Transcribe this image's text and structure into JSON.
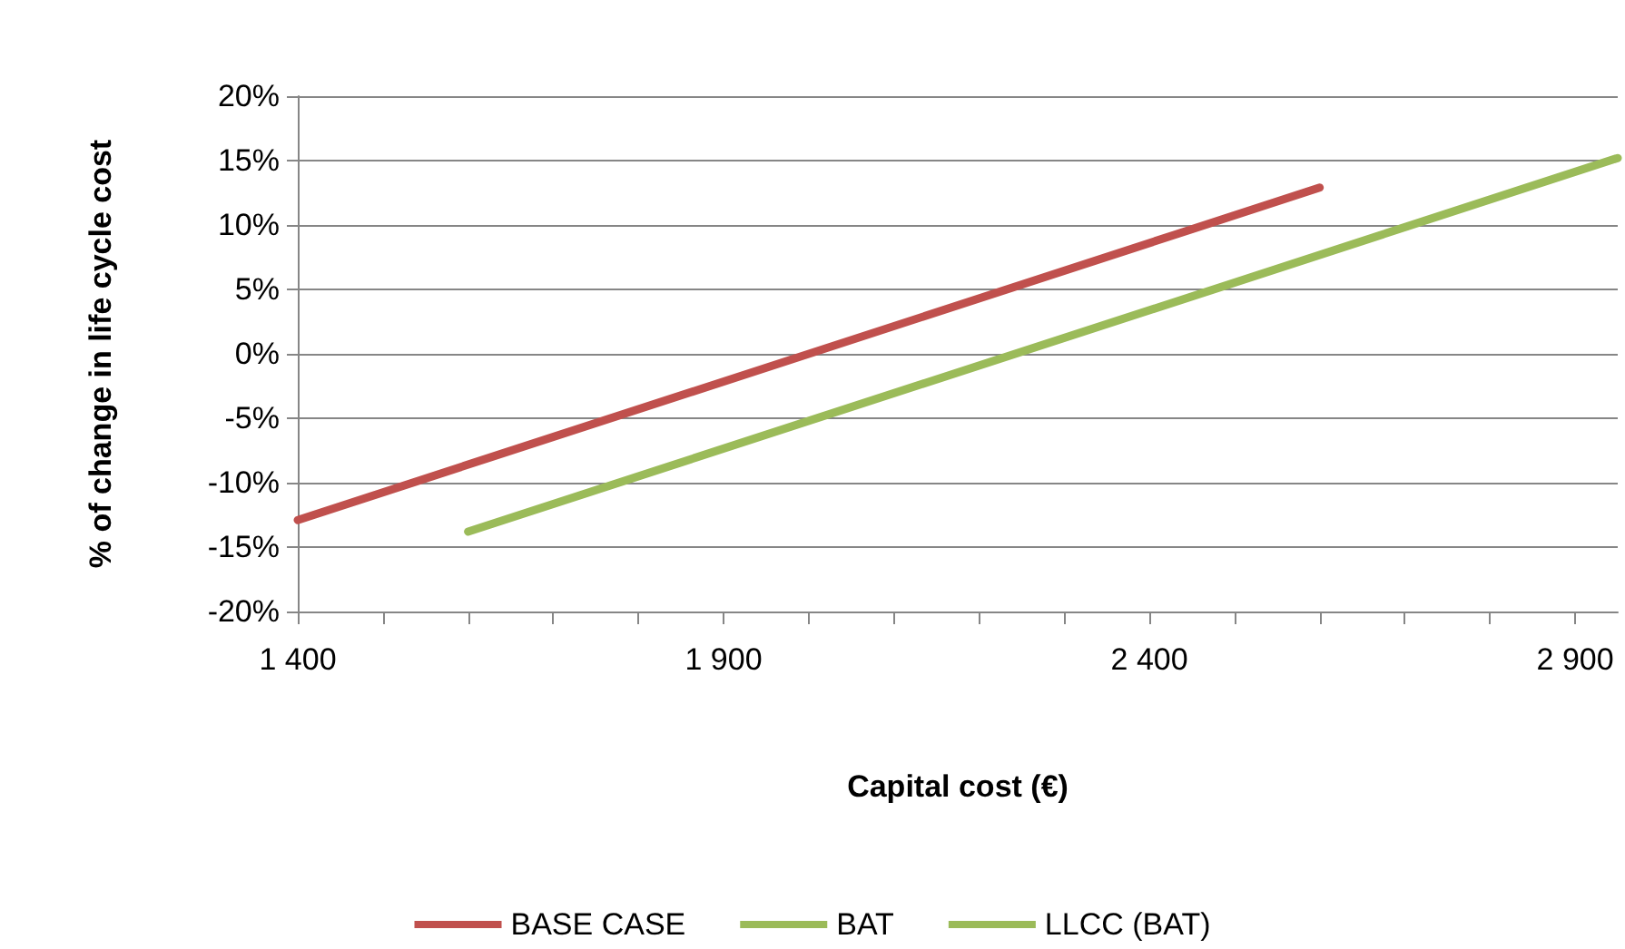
{
  "chart_data": {
    "type": "line",
    "xlabel": "Capital cost (€)",
    "ylabel": "% of change in life cycle cost",
    "series": [
      {
        "name": "BASE CASE",
        "color": "#c0504d",
        "x": [
          1400,
          2600
        ],
        "values": [
          -12.9,
          12.9
        ]
      },
      {
        "name": "BAT",
        "color": "#9bbb59",
        "x": [
          1600,
          2950
        ],
        "values": [
          -13.8,
          15.2
        ]
      },
      {
        "name": "LLCC (BAT)",
        "color": "#9bbb59"
      }
    ],
    "xlim": [
      1400,
      2950
    ],
    "xticks": [
      {
        "value": 1400,
        "label": "1 400"
      },
      {
        "value": 1500,
        "label": null
      },
      {
        "value": 1600,
        "label": null
      },
      {
        "value": 1700,
        "label": null
      },
      {
        "value": 1800,
        "label": null
      },
      {
        "value": 1900,
        "label": "1 900"
      },
      {
        "value": 2000,
        "label": null
      },
      {
        "value": 2100,
        "label": null
      },
      {
        "value": 2200,
        "label": null
      },
      {
        "value": 2300,
        "label": null
      },
      {
        "value": 2400,
        "label": "2 400"
      },
      {
        "value": 2500,
        "label": null
      },
      {
        "value": 2600,
        "label": null
      },
      {
        "value": 2700,
        "label": null
      },
      {
        "value": 2800,
        "label": null
      },
      {
        "value": 2900,
        "label": "2 900"
      }
    ],
    "ylim": [
      -20,
      20
    ],
    "yticks": [
      {
        "value": -20,
        "label": "-20%"
      },
      {
        "value": -15,
        "label": "-15%"
      },
      {
        "value": -10,
        "label": "-10%"
      },
      {
        "value": -5,
        "label": "-5%"
      },
      {
        "value": 0,
        "label": "0%"
      },
      {
        "value": 5,
        "label": "5%"
      },
      {
        "value": 10,
        "label": "10%"
      },
      {
        "value": 15,
        "label": "15%"
      },
      {
        "value": 20,
        "label": "20%"
      }
    ],
    "grid": "y",
    "legend": "bottom",
    "marker": "none",
    "line_style": "solid"
  }
}
